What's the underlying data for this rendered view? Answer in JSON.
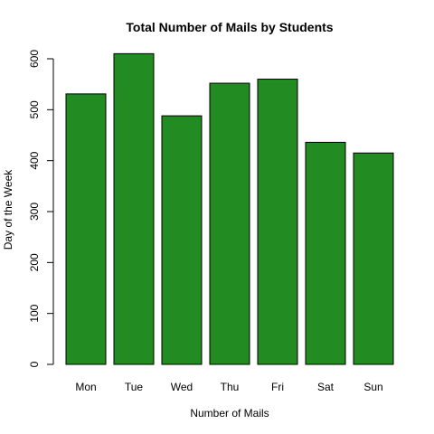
{
  "chart_data": {
    "type": "bar",
    "title": "Total Number of Mails by Students",
    "xlabel": "Number of Mails",
    "ylabel": "Day of the Week",
    "categories": [
      "Mon",
      "Tue",
      "Wed",
      "Thu",
      "Fri",
      "Sat",
      "Sun"
    ],
    "values": [
      531,
      610,
      488,
      552,
      560,
      436,
      415
    ],
    "ylim": [
      0,
      600
    ],
    "yticks": [
      0,
      100,
      200,
      300,
      400,
      500,
      600
    ],
    "bar_color": "#228B22",
    "grid": false,
    "legend": "none"
  }
}
